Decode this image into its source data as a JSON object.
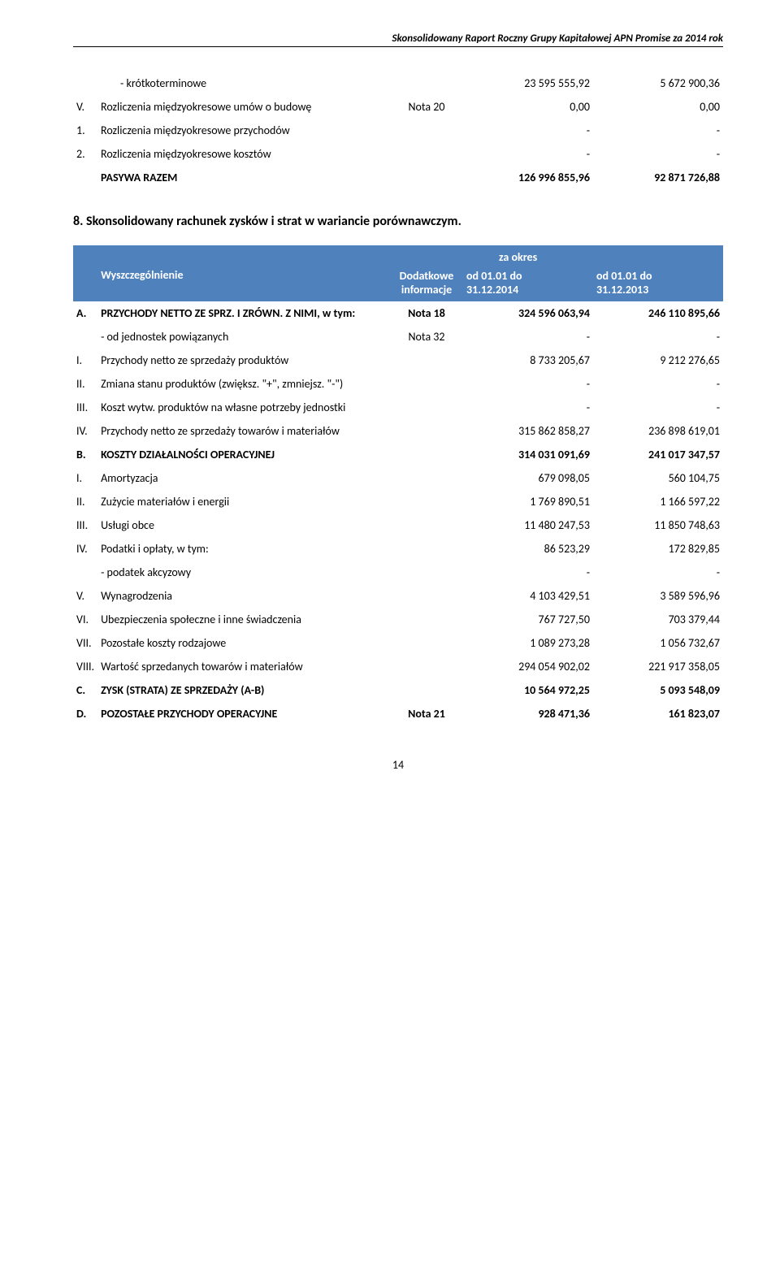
{
  "header": "Skonsolidowany Raport Roczny Grupy Kapitałowej APN Promise za 2014 rok",
  "table1": {
    "rows": [
      {
        "marker": "",
        "label": "- krótkoterminowe",
        "note": "",
        "v1": "23 595 555,92",
        "v2": "5 672 900,36",
        "bold": false,
        "ind": 2
      },
      {
        "marker": "V.",
        "label": "Rozliczenia międzyokresowe umów o budowę",
        "note": "Nota 20",
        "v1": "0,00",
        "v2": "0,00",
        "bold": false,
        "ind": 0
      },
      {
        "marker": "1.",
        "label": "Rozliczenia międzyokresowe przychodów",
        "note": "",
        "v1": "-",
        "v2": "-",
        "bold": false,
        "ind": 0
      },
      {
        "marker": "2.",
        "label": "Rozliczenia międzyokresowe kosztów",
        "note": "",
        "v1": "-",
        "v2": "-",
        "bold": false,
        "ind": 0
      },
      {
        "marker": "",
        "label": "PASYWA RAZEM",
        "note": "",
        "v1": "126 996 855,96",
        "v2": "92 871 726,88",
        "bold": true,
        "ind": 0
      }
    ]
  },
  "section8_title": "8. Skonsolidowany rachunek zysków i strat w wariancie porównawczym.",
  "t2header": {
    "za_okres": "za okres",
    "wyszczegolnienie": "Wyszczególnienie",
    "dodatkowe": "Dodatkowe informacje",
    "p1a": "od 01.01 do",
    "p1b": "31.12.2014",
    "p2a": "od 01.01 do",
    "p2b": "31.12.2013"
  },
  "table2": {
    "rows": [
      {
        "marker": "A.",
        "label": "PRZYCHODY NETTO ZE SPRZ. I ZRÓWN. Z NIMI, w tym:",
        "note": "Nota 18",
        "v1": "324 596 063,94",
        "v2": "246 110 895,66",
        "bold": true
      },
      {
        "marker": "",
        "label": "- od jednostek powiązanych",
        "note": "Nota 32",
        "v1": "-",
        "v2": "-",
        "bold": false
      },
      {
        "marker": "I.",
        "label": "Przychody netto ze sprzedaży produktów",
        "note": "",
        "v1": "8 733 205,67",
        "v2": "9 212 276,65",
        "bold": false
      },
      {
        "marker": "II.",
        "label": "Zmiana stanu produktów (zwiększ. \"+\", zmniejsz. \"-\")",
        "note": "",
        "v1": "-",
        "v2": "-",
        "bold": false
      },
      {
        "marker": "III.",
        "label": "Koszt wytw. produktów na własne potrzeby jednostki",
        "note": "",
        "v1": "-",
        "v2": "-",
        "bold": false
      },
      {
        "marker": "IV.",
        "label": "Przychody netto ze sprzedaży towarów i materiałów",
        "note": "",
        "v1": "315 862 858,27",
        "v2": "236 898 619,01",
        "bold": false
      },
      {
        "marker": "B.",
        "label": "KOSZTY DZIAŁALNOŚCI OPERACYJNEJ",
        "note": "",
        "v1": "314 031 091,69",
        "v2": "241 017 347,57",
        "bold": true
      },
      {
        "marker": "I.",
        "label": "Amortyzacja",
        "note": "",
        "v1": "679 098,05",
        "v2": "560 104,75",
        "bold": false
      },
      {
        "marker": "II.",
        "label": "Zużycie materiałów i energii",
        "note": "",
        "v1": "1 769 890,51",
        "v2": "1 166 597,22",
        "bold": false
      },
      {
        "marker": "III.",
        "label": "Usługi obce",
        "note": "",
        "v1": "11 480 247,53",
        "v2": "11 850 748,63",
        "bold": false
      },
      {
        "marker": "IV.",
        "label": "Podatki i opłaty, w tym:",
        "note": "",
        "v1": "86 523,29",
        "v2": "172 829,85",
        "bold": false
      },
      {
        "marker": "",
        "label": "- podatek akcyzowy",
        "note": "",
        "v1": "-",
        "v2": "-",
        "bold": false
      },
      {
        "marker": "V.",
        "label": "Wynagrodzenia",
        "note": "",
        "v1": "4 103 429,51",
        "v2": "3 589 596,96",
        "bold": false
      },
      {
        "marker": "VI.",
        "label": "Ubezpieczenia społeczne i inne świadczenia",
        "note": "",
        "v1": "767 727,50",
        "v2": "703 379,44",
        "bold": false
      },
      {
        "marker": "VII.",
        "label": "Pozostałe koszty rodzajowe",
        "note": "",
        "v1": "1 089 273,28",
        "v2": "1 056 732,67",
        "bold": false
      },
      {
        "marker": "VIII.",
        "label": "Wartość sprzedanych towarów i materiałów",
        "note": "",
        "v1": "294 054 902,02",
        "v2": "221 917 358,05",
        "bold": false
      },
      {
        "marker": "C.",
        "label": "ZYSK (STRATA) ZE SPRZEDAŻY (A-B)",
        "note": "",
        "v1": "10 564 972,25",
        "v2": "5 093 548,09",
        "bold": true
      },
      {
        "marker": "D.",
        "label": "POZOSTAŁE PRZYCHODY OPERACYJNE",
        "note": "Nota 21",
        "v1": "928 471,36",
        "v2": "161 823,07",
        "bold": true
      }
    ]
  },
  "page_number": "14",
  "colors": {
    "header_bg": "#4f81bd",
    "header_fg": "#ffffff",
    "text": "#000000",
    "bg": "#ffffff"
  }
}
